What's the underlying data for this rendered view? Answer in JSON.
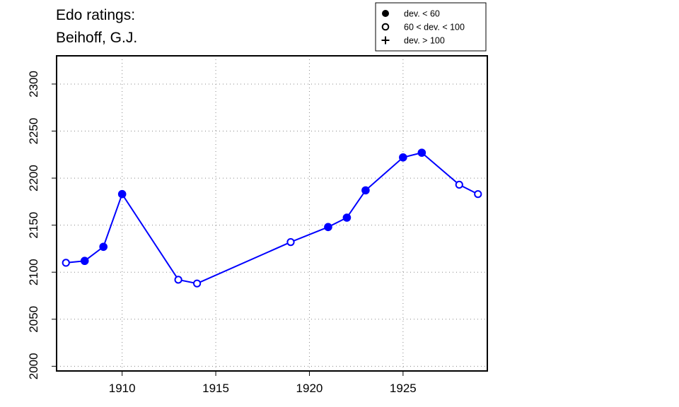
{
  "chart_data": {
    "type": "line",
    "title_lines": [
      "Edo ratings:",
      "Beihoff, G.J."
    ],
    "xlabel": "",
    "ylabel": "",
    "xlim": [
      1906.5,
      1929.5
    ],
    "ylim": [
      1995,
      2330
    ],
    "x_ticks": [
      1910,
      1915,
      1920,
      1925
    ],
    "y_ticks": [
      2000,
      2050,
      2100,
      2150,
      2200,
      2250,
      2300
    ],
    "grid": true,
    "legend": {
      "placement": "top-right",
      "entries": [
        {
          "symbol": "filled-circle",
          "label": "dev. < 60"
        },
        {
          "symbol": "open-circle",
          "label": "60 < dev. < 100"
        },
        {
          "symbol": "plus",
          "label": "dev. > 100"
        }
      ]
    },
    "series": [
      {
        "color": "#0000ff",
        "points": [
          {
            "x": 1907,
            "y": 2110,
            "marker": "open"
          },
          {
            "x": 1908,
            "y": 2112,
            "marker": "filled"
          },
          {
            "x": 1909,
            "y": 2127,
            "marker": "filled"
          },
          {
            "x": 1910,
            "y": 2183,
            "marker": "filled"
          },
          {
            "x": 1913,
            "y": 2092,
            "marker": "open"
          },
          {
            "x": 1914,
            "y": 2088,
            "marker": "open"
          },
          {
            "x": 1919,
            "y": 2132,
            "marker": "open"
          },
          {
            "x": 1921,
            "y": 2148,
            "marker": "filled"
          },
          {
            "x": 1922,
            "y": 2158,
            "marker": "filled"
          },
          {
            "x": 1923,
            "y": 2187,
            "marker": "filled"
          },
          {
            "x": 1925,
            "y": 2222,
            "marker": "filled"
          },
          {
            "x": 1926,
            "y": 2227,
            "marker": "filled"
          },
          {
            "x": 1928,
            "y": 2193,
            "marker": "open"
          },
          {
            "x": 1929,
            "y": 2183,
            "marker": "open"
          }
        ]
      }
    ]
  }
}
